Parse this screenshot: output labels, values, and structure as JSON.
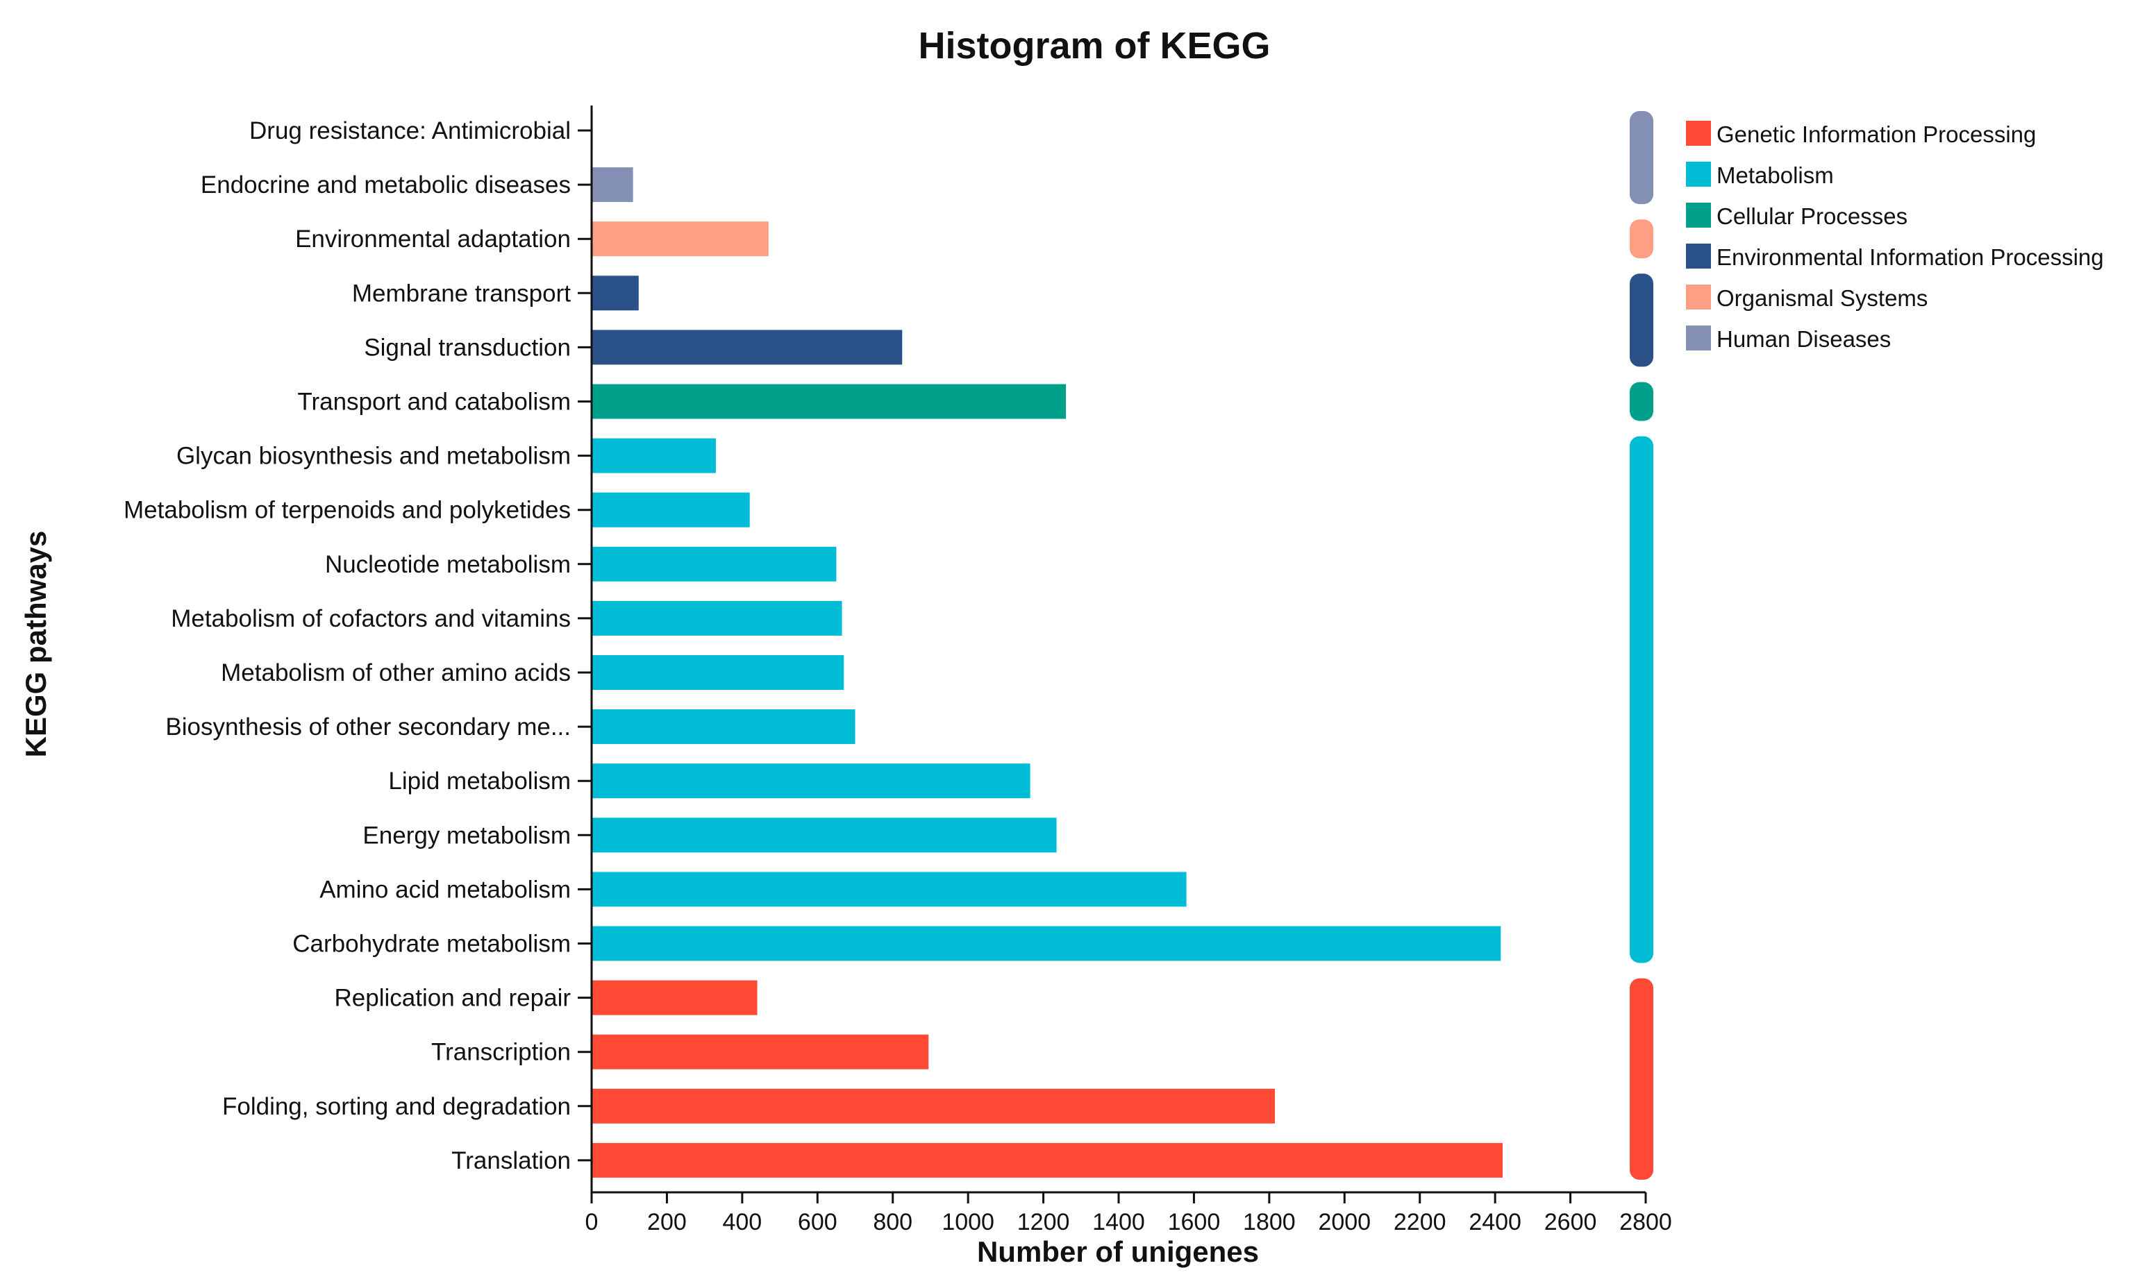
{
  "chart_data": {
    "type": "bar",
    "orientation": "horizontal",
    "title": "Histogram of KEGG",
    "xlabel": "Number of unigenes",
    "ylabel": "KEGG pathways",
    "xlim": [
      0,
      2800
    ],
    "xticks": [
      0,
      200,
      400,
      600,
      800,
      1000,
      1200,
      1400,
      1600,
      1800,
      2000,
      2200,
      2400,
      2600,
      2800
    ],
    "legend": {
      "position": "top-right",
      "entries": [
        {
          "name": "Genetic Information Processing",
          "color": "#FF4A35"
        },
        {
          "name": "Metabolism",
          "color": "#00BCD4"
        },
        {
          "name": "Cellular Processes",
          "color": "#00A08A"
        },
        {
          "name": "Environmental Information Processing",
          "color": "#2B5189"
        },
        {
          "name": "Organismal Systems",
          "color": "#FC9F84"
        },
        {
          "name": "Human Diseases",
          "color": "#8491B4"
        }
      ]
    },
    "categories": [
      "Drug resistance: Antimicrobial",
      "Endocrine and metabolic diseases",
      "Environmental adaptation",
      "Membrane transport",
      "Signal transduction",
      "Transport and catabolism",
      "Glycan biosynthesis and metabolism",
      "Metabolism of terpenoids and polyketides",
      "Nucleotide metabolism",
      "Metabolism of cofactors and vitamins",
      "Metabolism of other amino acids",
      "Biosynthesis of other secondary me...",
      "Lipid metabolism",
      "Energy metabolism",
      "Amino acid metabolism",
      "Carbohydrate metabolism",
      "Replication and repair",
      "Transcription",
      "Folding, sorting and degradation",
      "Translation"
    ],
    "values": [
      3,
      110,
      470,
      125,
      825,
      1260,
      330,
      420,
      650,
      665,
      670,
      700,
      1165,
      1235,
      1580,
      2415,
      440,
      895,
      1815,
      2420
    ],
    "groups": [
      "Human Diseases",
      "Human Diseases",
      "Organismal Systems",
      "Environmental Information Processing",
      "Environmental Information Processing",
      "Cellular Processes",
      "Metabolism",
      "Metabolism",
      "Metabolism",
      "Metabolism",
      "Metabolism",
      "Metabolism",
      "Metabolism",
      "Metabolism",
      "Metabolism",
      "Metabolism",
      "Genetic Information Processing",
      "Genetic Information Processing",
      "Genetic Information Processing",
      "Genetic Information Processing"
    ]
  }
}
